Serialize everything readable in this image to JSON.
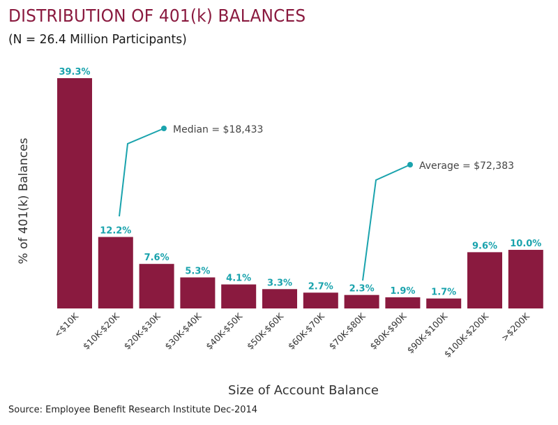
{
  "chart_data": {
    "type": "bar",
    "title": "DISTRIBUTION OF 401(k) BALANCES",
    "subtitle": "(N = 26.4 Million Participants)",
    "xlabel": "Size of Account Balance",
    "ylabel": "% of 401(k) Balances",
    "categories": [
      "<$10K",
      "$10K-$20K",
      "$20K-$30K",
      "$30K-$40K",
      "$40K-$50K",
      "$50K-$60K",
      "$60K-$70K",
      "$70K-$80K",
      "$80K-$90K",
      "$90K-$100K",
      "$100K-$200K",
      ">$200K"
    ],
    "values": [
      39.3,
      12.2,
      7.6,
      5.3,
      4.1,
      3.3,
      2.7,
      2.3,
      1.9,
      1.7,
      9.6,
      10.0
    ],
    "data_labels": [
      "39.3%",
      "12.2%",
      "7.6%",
      "5.3%",
      "4.1%",
      "3.3%",
      "2.7%",
      "2.3%",
      "1.9%",
      "1.7%",
      "9.6%",
      "10.0%"
    ],
    "ylim": [
      0,
      40
    ],
    "grid": false,
    "legend": "none",
    "annotations": [
      {
        "text": "Median = $18,433",
        "category_index": 1
      },
      {
        "text": "Average = $72,383",
        "category_index": 7
      }
    ],
    "source": "Source: Employee Benefit Research Institute Dec-2014",
    "colors": {
      "bar": "#8a1a3f",
      "label": "#1aa3ad",
      "title": "#8a1a3f"
    }
  }
}
